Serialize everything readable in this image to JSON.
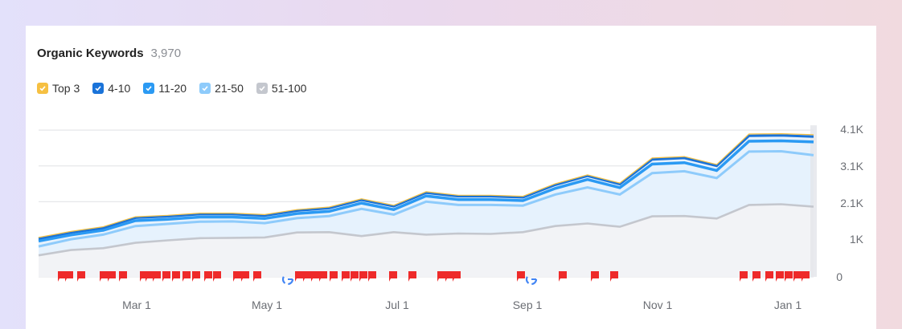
{
  "header": {
    "title": "Organic Keywords",
    "count": "3,970"
  },
  "legend": [
    {
      "label": "Top 3",
      "color": "#f6c042",
      "checked": true
    },
    {
      "label": "4-10",
      "color": "#1a73d9",
      "checked": true
    },
    {
      "label": "11-20",
      "color": "#2b9af3",
      "checked": true
    },
    {
      "label": "21-50",
      "color": "#8ecbfb",
      "checked": true
    },
    {
      "label": "51-100",
      "color": "#c4c7ce",
      "checked": true
    }
  ],
  "y_axis": {
    "ticks": [
      "4.1K",
      "3.1K",
      "2.1K",
      "1K",
      "0"
    ]
  },
  "x_axis": {
    "ticks": [
      "Mar 1",
      "May 1",
      "Jul 1",
      "Sep 1",
      "Nov 1",
      "Jan 1"
    ]
  },
  "chart_data": {
    "type": "area",
    "title": "Organic Keywords",
    "subtitle": "3,970",
    "xlabel": "",
    "ylabel": "",
    "ylim": [
      0,
      4100
    ],
    "y_ticks": [
      0,
      1000,
      2100,
      3100,
      4100
    ],
    "x_ticks": [
      "Mar 1",
      "May 1",
      "Jul 1",
      "Sep 1",
      "Nov 1",
      "Jan 1"
    ],
    "legend_position": "top-left",
    "grid": true,
    "x": [
      "Jan 15",
      "Feb 1",
      "Feb 15",
      "Mar 1",
      "Mar 15",
      "Apr 1",
      "Apr 15",
      "May 1",
      "May 15",
      "Jun 1",
      "Jun 15",
      "Jul 1",
      "Jul 15",
      "Aug 1",
      "Aug 15",
      "Sep 1",
      "Sep 15",
      "Oct 1",
      "Oct 15",
      "Nov 1",
      "Nov 15",
      "Dec 1",
      "Dec 15",
      "Jan 1",
      "Jan 10"
    ],
    "series": [
      {
        "name": "Top 3 (cumulative total)",
        "values": [
          1100,
          1270,
          1400,
          1680,
          1720,
          1780,
          1780,
          1740,
          1880,
          1950,
          2180,
          2000,
          2380,
          2280,
          2280,
          2250,
          2600,
          2850,
          2620,
          3320,
          3360,
          3140,
          3990,
          4000,
          3970
        ]
      },
      {
        "name": "4-10 (cumulative)",
        "values": [
          1070,
          1240,
          1370,
          1650,
          1690,
          1750,
          1750,
          1710,
          1850,
          1920,
          2150,
          1970,
          2350,
          2250,
          2250,
          2220,
          2570,
          2820,
          2590,
          3280,
          3320,
          3100,
          3940,
          3950,
          3920
        ]
      },
      {
        "name": "11-20 (cumulative)",
        "values": [
          1000,
          1170,
          1300,
          1570,
          1610,
          1670,
          1670,
          1630,
          1770,
          1830,
          2060,
          1880,
          2260,
          2160,
          2160,
          2130,
          2470,
          2720,
          2490,
          3150,
          3190,
          2970,
          3790,
          3800,
          3770
        ]
      },
      {
        "name": "21-50 (cumulative)",
        "values": [
          850,
          1050,
          1180,
          1420,
          1480,
          1540,
          1550,
          1500,
          1640,
          1700,
          1900,
          1740,
          2100,
          2010,
          2010,
          1990,
          2300,
          2500,
          2300,
          2900,
          2950,
          2760,
          3500,
          3510,
          3400
        ]
      },
      {
        "name": "51-100",
        "values": [
          600,
          750,
          800,
          950,
          1020,
          1080,
          1090,
          1100,
          1240,
          1250,
          1140,
          1250,
          1180,
          1210,
          1200,
          1250,
          1420,
          1490,
          1400,
          1690,
          1700,
          1630,
          2010,
          2030,
          1960
        ]
      }
    ],
    "annotations": "Red flag markers along x-axis and Google update icons near May 1 and Sep 1"
  },
  "colors": {
    "top3": "#f6c042",
    "pos4_10": "#1a73d9",
    "pos11_20": "#2b9af3",
    "pos21_50": "#8ecbfb",
    "pos51_100": "#c4c7ce",
    "band_fill": "#e6f2fd",
    "gray_fill": "#f2f3f6",
    "flag": "#ee2a2a"
  }
}
